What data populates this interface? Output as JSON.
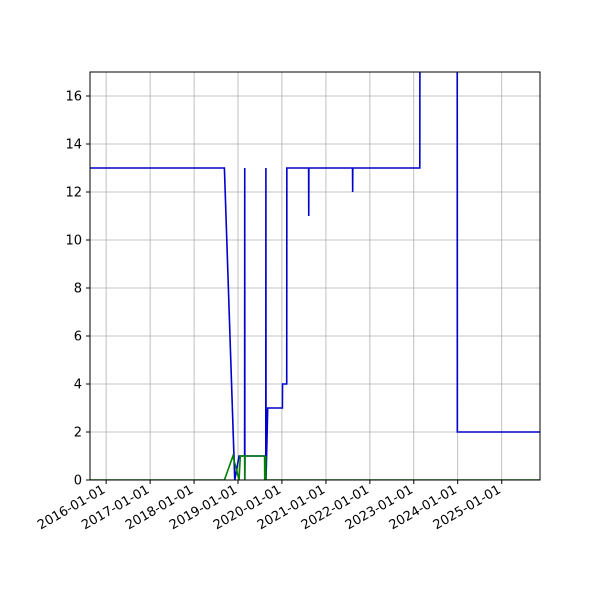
{
  "chart_data": {
    "type": "line",
    "title": "",
    "xlabel": "",
    "ylabel": "",
    "xlim": [
      "2015-08-20",
      "2025-11-15"
    ],
    "ylim": [
      0,
      17
    ],
    "grid": true,
    "x_ticks": [
      "2016-01-01",
      "2017-01-01",
      "2018-01-01",
      "2019-01-01",
      "2020-01-01",
      "2021-01-01",
      "2022-01-01",
      "2023-01-01",
      "2024-01-01",
      "2025-01-01"
    ],
    "y_ticks": [
      0,
      2,
      4,
      6,
      8,
      10,
      12,
      14,
      16
    ],
    "series": [
      {
        "color": "#0000cc",
        "points": [
          [
            "2015-08-20",
            13
          ],
          [
            "2018-09-10",
            13
          ],
          [
            "2018-12-05",
            0
          ],
          [
            "2019-01-10",
            1
          ],
          [
            "2019-02-25",
            1
          ],
          [
            "2019-02-26",
            13
          ],
          [
            "2019-02-27",
            0
          ],
          [
            "2019-02-28",
            1
          ],
          [
            "2019-08-20",
            1
          ],
          [
            "2019-08-21",
            13
          ],
          [
            "2019-08-22",
            0
          ],
          [
            "2019-09-05",
            3
          ],
          [
            "2020-01-05",
            3
          ],
          [
            "2020-01-06",
            4
          ],
          [
            "2020-02-10",
            4
          ],
          [
            "2020-02-11",
            13
          ],
          [
            "2020-08-10",
            13
          ],
          [
            "2020-08-11",
            11
          ],
          [
            "2020-08-12",
            13
          ],
          [
            "2021-08-10",
            13
          ],
          [
            "2021-08-11",
            12
          ],
          [
            "2021-08-12",
            13
          ],
          [
            "2023-02-20",
            13
          ],
          [
            "2023-02-21",
            17.5
          ],
          [
            "2023-12-28",
            17.5
          ],
          [
            "2023-12-29",
            2
          ],
          [
            "2025-11-15",
            2
          ]
        ]
      },
      {
        "color": "#008000",
        "points": [
          [
            "2015-08-20",
            0
          ],
          [
            "2018-09-10",
            0
          ],
          [
            "2018-11-20",
            1
          ],
          [
            "2019-01-10",
            0
          ],
          [
            "2019-01-20",
            1
          ],
          [
            "2019-02-25",
            1
          ],
          [
            "2019-02-26",
            0
          ],
          [
            "2019-02-27",
            1
          ],
          [
            "2019-08-10",
            1
          ],
          [
            "2019-08-11",
            0
          ],
          [
            "2019-08-20",
            1
          ],
          [
            "2019-08-21",
            0
          ],
          [
            "2025-11-15",
            0
          ]
        ]
      }
    ]
  }
}
